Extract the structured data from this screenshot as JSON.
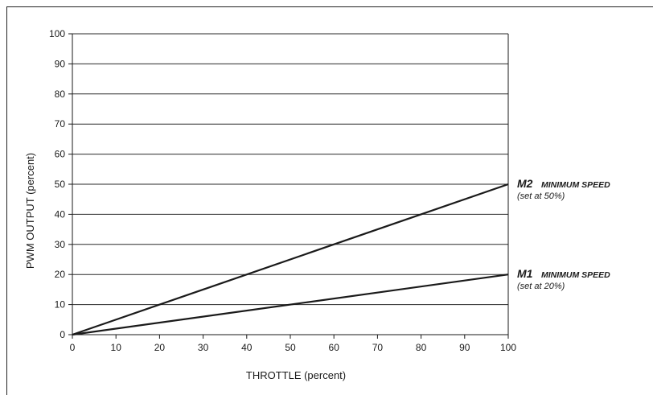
{
  "chart_data": {
    "type": "line",
    "title": "",
    "xlabel": "THROTTLE  (percent)",
    "ylabel": "PWM OUTPUT  (percent)",
    "xlim": [
      0,
      100
    ],
    "ylim": [
      0,
      100
    ],
    "x_ticks": [
      0,
      10,
      20,
      30,
      40,
      50,
      60,
      70,
      80,
      90,
      100
    ],
    "y_ticks": [
      0,
      10,
      20,
      30,
      40,
      50,
      60,
      70,
      80,
      90,
      100
    ],
    "grid": "horizontal",
    "series": [
      {
        "name": "M2",
        "label": "MINIMUM SPEED",
        "note": "(set at 50%)",
        "x": [
          0,
          100
        ],
        "y": [
          0,
          50
        ],
        "color": "#1a1a1a"
      },
      {
        "name": "M1",
        "label": "MINIMUM SPEED",
        "note": "(set at 20%)",
        "x": [
          0,
          100
        ],
        "y": [
          0,
          20
        ],
        "color": "#1a1a1a"
      }
    ]
  }
}
